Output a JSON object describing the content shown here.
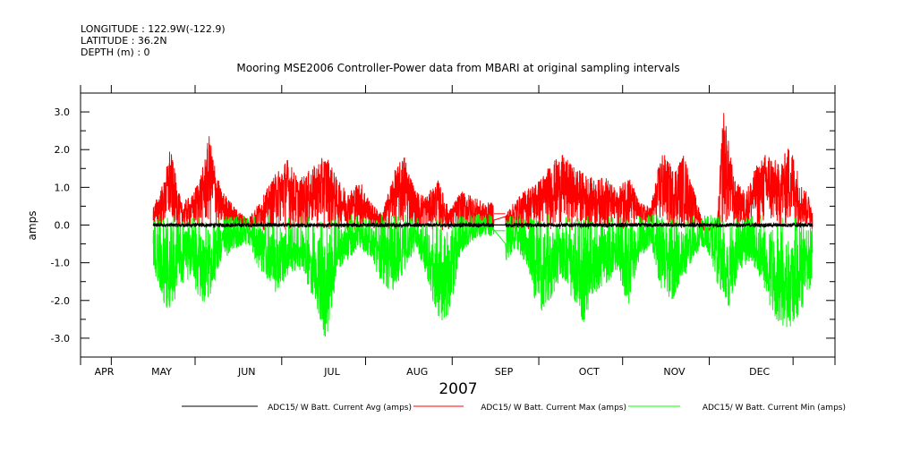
{
  "header": {
    "longitude": "LONGITUDE : 122.9W(-122.9)",
    "latitude": "LATITUDE : 36.2N",
    "depth": "DEPTH (m) : 0"
  },
  "chart_data": {
    "type": "line",
    "title": "Mooring MSE2006 Controller-Power data from MBARI at original sampling intervals",
    "xlabel": "2007",
    "ylabel": "amps",
    "ylim": [
      -3.5,
      3.5
    ],
    "yticks": [
      "3.0",
      "2.0",
      "1.0",
      "0.0",
      "-1.0",
      "-2.0",
      "-3.0"
    ],
    "ytick_values": [
      3.0,
      2.0,
      1.0,
      0.0,
      -1.0,
      -2.0,
      -3.0
    ],
    "month_labels": [
      "APR",
      "MAY",
      "JUN",
      "JUL",
      "AUG",
      "SEP",
      "OCT",
      "NOV",
      "DEC"
    ],
    "x_range_days": [
      0,
      270
    ],
    "gap_days": [
      148,
      152
    ],
    "series": [
      {
        "name": "ADC15/ W Batt. Current Avg (amps)",
        "color": "#000000",
        "envelope": {
          "base": 0.0,
          "amp": 0.05
        }
      },
      {
        "name": "ADC15/ W Batt. Current Max (amps)",
        "color": "#ff0000",
        "points": [
          [
            26,
            0.5
          ],
          [
            30,
            1.2
          ],
          [
            32,
            2.1
          ],
          [
            36,
            0.6
          ],
          [
            40,
            0.8
          ],
          [
            44,
            1.6
          ],
          [
            46,
            2.4
          ],
          [
            50,
            1.0
          ],
          [
            56,
            0.4
          ],
          [
            60,
            0.2
          ],
          [
            64,
            0.6
          ],
          [
            70,
            1.4
          ],
          [
            74,
            1.8
          ],
          [
            78,
            1.2
          ],
          [
            84,
            1.6
          ],
          [
            88,
            1.9
          ],
          [
            92,
            1.2
          ],
          [
            96,
            0.9
          ],
          [
            100,
            1.2
          ],
          [
            104,
            0.6
          ],
          [
            108,
            0.3
          ],
          [
            112,
            1.4
          ],
          [
            116,
            1.9
          ],
          [
            120,
            0.9
          ],
          [
            124,
            0.8
          ],
          [
            128,
            1.2
          ],
          [
            132,
            0.4
          ],
          [
            136,
            0.9
          ],
          [
            140,
            0.8
          ],
          [
            144,
            0.6
          ],
          [
            148,
            0.6
          ],
          [
            152,
            0.3
          ],
          [
            156,
            0.7
          ],
          [
            160,
            1.0
          ],
          [
            164,
            1.2
          ],
          [
            168,
            1.6
          ],
          [
            172,
            1.9
          ],
          [
            176,
            1.6
          ],
          [
            180,
            1.4
          ],
          [
            184,
            1.2
          ],
          [
            188,
            1.3
          ],
          [
            192,
            0.9
          ],
          [
            196,
            1.4
          ],
          [
            200,
            0.6
          ],
          [
            204,
            0.5
          ],
          [
            208,
            2.0
          ],
          [
            212,
            1.5
          ],
          [
            216,
            1.9
          ],
          [
            220,
            0.8
          ],
          [
            224,
            -0.2
          ],
          [
            228,
            0.2
          ],
          [
            230,
            3.2
          ],
          [
            234,
            1.2
          ],
          [
            238,
            0.9
          ],
          [
            242,
            1.6
          ],
          [
            246,
            2.0
          ],
          [
            250,
            1.6
          ],
          [
            254,
            2.2
          ],
          [
            258,
            1.1
          ],
          [
            262,
            0.6
          ]
        ]
      },
      {
        "name": "ADC15/ W Batt. Current Min (amps)",
        "color": "#00ff00",
        "points": [
          [
            26,
            -1.2
          ],
          [
            30,
            -2.2
          ],
          [
            32,
            -2.3
          ],
          [
            36,
            -1.6
          ],
          [
            40,
            -1.4
          ],
          [
            44,
            -2.4
          ],
          [
            46,
            -2.0
          ],
          [
            50,
            -1.0
          ],
          [
            56,
            -0.6
          ],
          [
            60,
            -0.5
          ],
          [
            64,
            -1.2
          ],
          [
            70,
            -1.8
          ],
          [
            74,
            -1.4
          ],
          [
            78,
            -1.2
          ],
          [
            84,
            -2.0
          ],
          [
            88,
            -3.2
          ],
          [
            92,
            -1.2
          ],
          [
            96,
            -0.9
          ],
          [
            100,
            -0.6
          ],
          [
            104,
            -0.9
          ],
          [
            108,
            -1.6
          ],
          [
            112,
            -1.8
          ],
          [
            116,
            -1.2
          ],
          [
            120,
            -0.6
          ],
          [
            124,
            -1.4
          ],
          [
            128,
            -2.6
          ],
          [
            132,
            -2.4
          ],
          [
            136,
            -0.8
          ],
          [
            140,
            -0.4
          ],
          [
            144,
            -0.3
          ],
          [
            148,
            -0.3
          ],
          [
            152,
            -1.0
          ],
          [
            156,
            -0.6
          ],
          [
            160,
            -1.2
          ],
          [
            164,
            -2.4
          ],
          [
            168,
            -2.0
          ],
          [
            172,
            -1.4
          ],
          [
            176,
            -2.0
          ],
          [
            180,
            -2.6
          ],
          [
            184,
            -1.8
          ],
          [
            188,
            -1.6
          ],
          [
            192,
            -1.2
          ],
          [
            196,
            -2.2
          ],
          [
            200,
            -0.9
          ],
          [
            204,
            -0.6
          ],
          [
            208,
            -1.8
          ],
          [
            212,
            -2.0
          ],
          [
            216,
            -1.4
          ],
          [
            220,
            -0.8
          ],
          [
            224,
            -0.6
          ],
          [
            228,
            -1.6
          ],
          [
            232,
            -2.2
          ],
          [
            236,
            -1.2
          ],
          [
            240,
            -1.0
          ],
          [
            244,
            -1.6
          ],
          [
            248,
            -2.4
          ],
          [
            252,
            -2.8
          ],
          [
            256,
            -2.6
          ],
          [
            260,
            -2.0
          ],
          [
            262,
            -1.4
          ]
        ]
      }
    ]
  }
}
